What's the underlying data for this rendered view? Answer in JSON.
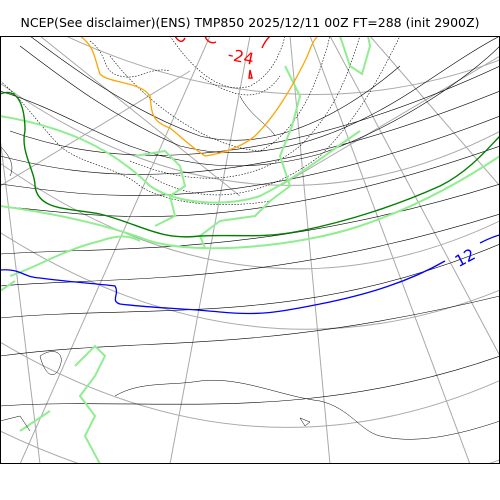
{
  "header": {
    "title": "NCEP(See disclaimer)(ENS) TMP850 2025/12/11 00Z FT=288 (init 2900Z)"
  },
  "map": {
    "colors": {
      "isotherm": "#000000",
      "contour_green": "#008000",
      "contour_blue": "#0000ff",
      "contour_orange": "#ffa500",
      "contour_red": "#ff0000",
      "coastline": "#000000",
      "sea_ice": "#90ee90",
      "graticule": "#a9a9a9"
    },
    "labels": {
      "minus24": "-24",
      "plus12": "12"
    }
  }
}
